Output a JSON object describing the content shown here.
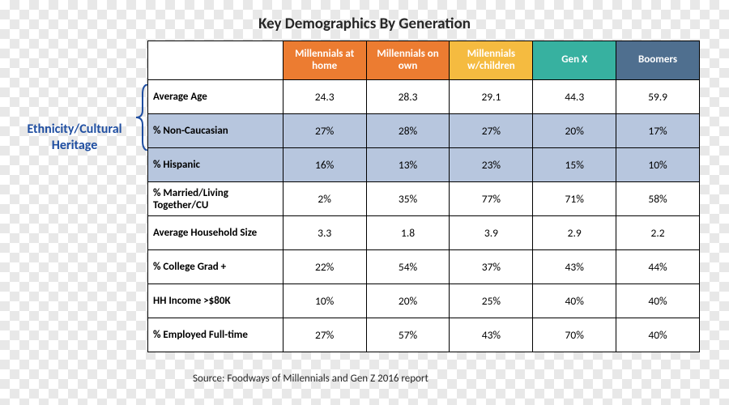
{
  "title": "Key Demographics By Generation",
  "annotation": "Ethnicity/Cultural Heritage",
  "annotation_color": "#1f4ea1",
  "source": "Source: Foodways of Millennials and Gen Z 2016 report",
  "header_colors": [
    "#ec7c31",
    "#ec7c31",
    "#f5bb40",
    "#37b1a0",
    "#4f6f8f"
  ],
  "highlight_row_bg": "#b7c6de",
  "columns": [
    "Millennials at home",
    "Millennials on own",
    "Millennials w/children",
    "Gen X",
    "Boomers"
  ],
  "rows": [
    {
      "label": "Average Age",
      "values": [
        "24.3",
        "28.3",
        "29.1",
        "44.3",
        "59.9"
      ],
      "highlight": false
    },
    {
      "label": "% Non-Caucasian",
      "values": [
        "27%",
        "28%",
        "27%",
        "20%",
        "17%"
      ],
      "highlight": true
    },
    {
      "label": "% Hispanic",
      "values": [
        "16%",
        "13%",
        "23%",
        "15%",
        "10%"
      ],
      "highlight": true
    },
    {
      "label": "% Married/Living Together/CU",
      "values": [
        "2%",
        "35%",
        "77%",
        "71%",
        "58%"
      ],
      "highlight": false
    },
    {
      "label": "Average Household Size",
      "values": [
        "3.3",
        "1.8",
        "3.9",
        "2.9",
        "2.2"
      ],
      "highlight": false
    },
    {
      "label": "% College Grad +",
      "values": [
        "22%",
        "54%",
        "37%",
        "43%",
        "44%"
      ],
      "highlight": false
    },
    {
      "label": "HH Income >$80K",
      "values": [
        "10%",
        "20%",
        "25%",
        "40%",
        "40%"
      ],
      "highlight": false
    },
    {
      "label": "% Employed Full-time",
      "values": [
        "27%",
        "57%",
        "43%",
        "70%",
        "40%"
      ],
      "highlight": false
    }
  ]
}
